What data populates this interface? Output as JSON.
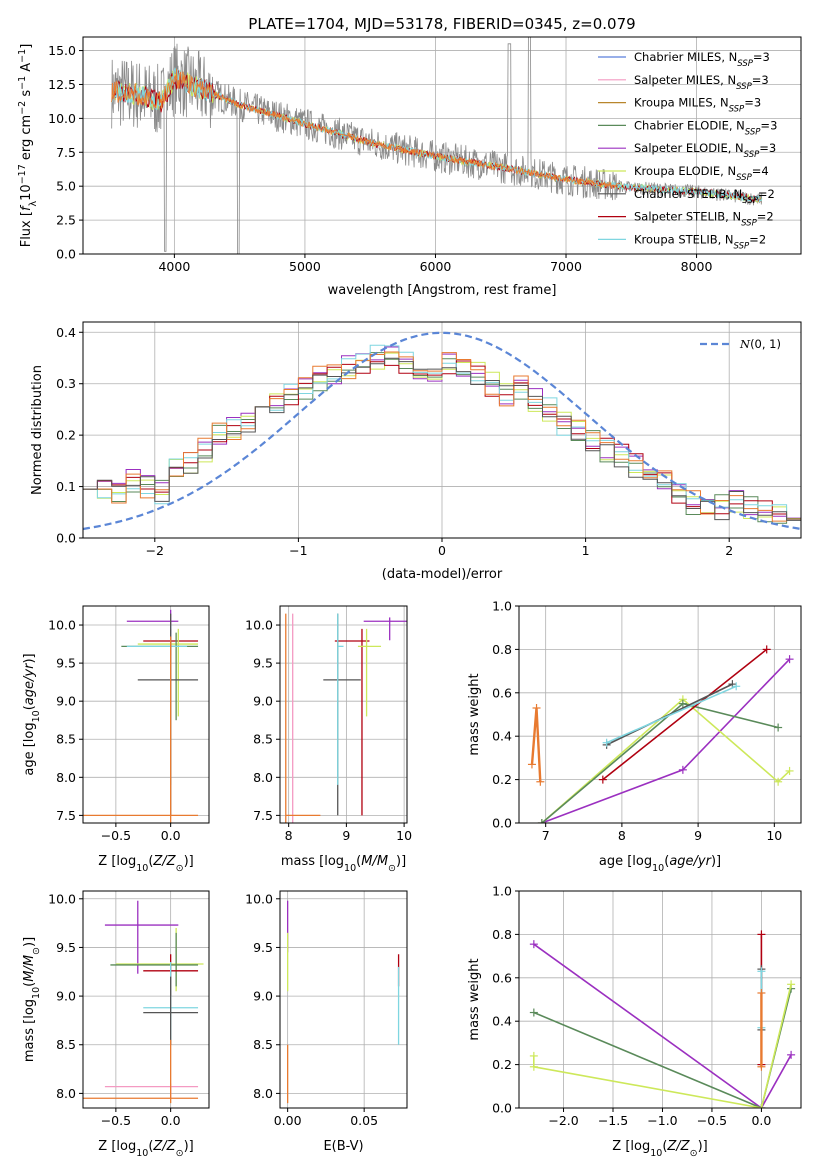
{
  "colors": {
    "Chabrier MILES": "#5b7fdc",
    "Salpeter MILES": "#f49ac2",
    "Kroupa MILES": "#b8862c",
    "Chabrier ELODIE": "#5a8a5a",
    "Salpeter ELODIE": "#9b30c0",
    "Kroupa ELODIE": "#cde85a",
    "Chabrier STELIB": "#555555",
    "Salpeter STELIB": "#b00010",
    "Kroupa STELIB": "#7fd6e0",
    "orange": "#e87a30"
  },
  "chart_data": [
    {
      "id": "spectrum",
      "type": "line",
      "title": "PLATE=1704, MJD=53178, FIBERID=0345, z=0.079",
      "xlabel": "wavelength [Angstrom, rest frame]",
      "ylabel": "Flux [f_λ10^-17 erg cm^-2 s^-1 A^-1]",
      "ylabel_parts": {
        "a": "Flux [",
        "b": "f",
        "c": "λ",
        "d": "10",
        "e": "−17",
        "f": " erg cm",
        "g": "−2",
        "h": " s",
        "i": "−1",
        "j": " A",
        "k": "−1",
        "l": "]"
      },
      "xlim": [
        3300,
        8800
      ],
      "ylim": [
        0,
        16
      ],
      "xticks": [
        4000,
        5000,
        6000,
        7000,
        8000
      ],
      "yticks": [
        0.0,
        2.5,
        5.0,
        7.5,
        10.0,
        12.5,
        15.0
      ],
      "ytick_labels": [
        "0.0",
        "2.5",
        "5.0",
        "7.5",
        "10.0",
        "12.5",
        "15.0"
      ],
      "legend_position": "upper-right",
      "legend": [
        {
          "name": "Chabrier MILES",
          "n": "3"
        },
        {
          "name": "Salpeter MILES",
          "n": "3"
        },
        {
          "name": "Kroupa MILES",
          "n": "3"
        },
        {
          "name": "Chabrier ELODIE",
          "n": "3"
        },
        {
          "name": "Salpeter ELODIE",
          "n": "3"
        },
        {
          "name": "Kroupa ELODIE",
          "n": "4"
        },
        {
          "name": "Chabrier STELIB",
          "n": "2"
        },
        {
          "name": "Salpeter STELIB",
          "n": "2"
        },
        {
          "name": "Kroupa STELIB",
          "n": "2"
        }
      ],
      "legend_suffix": {
        "a": ", N",
        "b": "SSP",
        "c": "="
      },
      "data_extent": [
        3520,
        8500
      ],
      "model_points": [
        [
          3520,
          12.0
        ],
        [
          3700,
          11.8
        ],
        [
          3900,
          11.2
        ],
        [
          4000,
          13.0
        ],
        [
          4200,
          12.2
        ],
        [
          4500,
          11.0
        ],
        [
          5000,
          9.6
        ],
        [
          5500,
          8.2
        ],
        [
          6000,
          7.2
        ],
        [
          6500,
          6.4
        ],
        [
          7000,
          5.5
        ],
        [
          7400,
          5.0
        ],
        [
          7500,
          4.9
        ],
        [
          8000,
          4.6
        ],
        [
          8500,
          4.0
        ]
      ]
    },
    {
      "id": "residuals",
      "type": "step",
      "xlabel": "(data-model)/error",
      "ylabel": "Normed distribution",
      "xlim": [
        -2.5,
        2.5
      ],
      "ylim": [
        0,
        0.42
      ],
      "xticks": [
        -2,
        -1,
        0,
        1,
        2
      ],
      "xtick_labels": [
        "−2",
        "−1",
        "0",
        "1",
        "2"
      ],
      "yticks": [
        0.0,
        0.1,
        0.2,
        0.3,
        0.4
      ],
      "ytick_labels": [
        "0.0",
        "0.1",
        "0.2",
        "0.3",
        "0.4"
      ],
      "legend_position": "upper-right",
      "gaussian_label": "N(0,1)",
      "gaussian_label_parts": {
        "a": "N",
        "b": "(0, 1)"
      },
      "bin_width": 0.1,
      "base_shape": [
        0.12,
        0.1,
        0.09,
        0.11,
        0.1,
        0.09,
        0.13,
        0.15,
        0.17,
        0.2,
        0.21,
        0.23,
        0.24,
        0.26,
        0.28,
        0.29,
        0.31,
        0.32,
        0.33,
        0.34,
        0.35,
        0.35,
        0.34,
        0.33,
        0.33,
        0.34,
        0.33,
        0.32,
        0.3,
        0.28,
        0.29,
        0.27,
        0.25,
        0.22,
        0.21,
        0.19,
        0.17,
        0.16,
        0.14,
        0.12,
        0.11,
        0.09,
        0.07,
        0.06,
        0.06,
        0.07,
        0.06,
        0.05,
        0.04,
        0.03
      ]
    },
    {
      "id": "age-z",
      "type": "errorbar",
      "xlabel_parts": {
        "a": "Z [log",
        "b": "10",
        "c": "(",
        "d": "Z/Z",
        "e": "⊙",
        "f": ")]"
      },
      "ylabel_parts": {
        "a": "age  [log",
        "b": "10",
        "c": "(",
        "d": "age/yr",
        "e": ")]"
      },
      "xlim": [
        -0.8,
        0.35
      ],
      "ylim": [
        7.4,
        10.25
      ],
      "xticks": [
        -0.5,
        0.0
      ],
      "xtick_labels": [
        "−0.5",
        "0.0"
      ],
      "yticks": [
        7.5,
        8.0,
        8.5,
        9.0,
        9.5,
        10.0
      ],
      "ytick_labels": [
        "7.5",
        "8.0",
        "8.5",
        "9.0",
        "9.5",
        "10.0"
      ],
      "points": [
        {
          "c": "Salpeter ELODIE",
          "x": 0.0,
          "y": 10.05,
          "xl": -0.4,
          "xh": 0.07,
          "yl": 9.8,
          "yh": 10.2
        },
        {
          "c": "Salpeter STELIB",
          "x": 0.0,
          "y": 9.79,
          "xl": -0.25,
          "xh": 0.25,
          "yl": 9.6,
          "yh": 9.95
        },
        {
          "c": "Kroupa ELODIE",
          "x": 0.07,
          "y": 9.75,
          "xl": -0.3,
          "xh": 0.25,
          "yl": 8.8,
          "yh": 9.95
        },
        {
          "c": "Chabrier ELODIE",
          "x": 0.05,
          "y": 9.72,
          "xl": -0.45,
          "xh": 0.25,
          "yl": 8.75,
          "yh": 9.9
        },
        {
          "c": "Kroupa STELIB",
          "x": 0.0,
          "y": 9.72,
          "xl": -0.4,
          "xh": 0.15,
          "yl": 7.9,
          "yh": 10.0
        },
        {
          "c": "Chabrier STELIB",
          "x": 0.0,
          "y": 9.28,
          "xl": -0.3,
          "xh": 0.25,
          "yl": 7.5,
          "yh": 10.15
        },
        {
          "c": "orange",
          "x": 0.0,
          "y": 7.5,
          "xl": -0.8,
          "xh": 0.25,
          "yl": 7.4,
          "yh": 9.85
        }
      ]
    },
    {
      "id": "age-mass",
      "type": "errorbar",
      "xlabel_parts": {
        "a": "mass [log",
        "b": "10",
        "c": "(",
        "d": "M/M",
        "e": "⊙",
        "f": ")]"
      },
      "xlim": [
        7.85,
        10.05
      ],
      "ylim": [
        7.4,
        10.25
      ],
      "xticks": [
        8,
        9,
        10
      ],
      "xtick_labels": [
        "8",
        "9",
        "10"
      ],
      "yticks": [
        7.5,
        8.0,
        8.5,
        9.0,
        9.5,
        10.0
      ],
      "ytick_labels": [
        "7.5",
        "8.0",
        "8.5",
        "9.0",
        "9.5",
        "10.0"
      ],
      "points": [
        {
          "c": "Salpeter ELODIE",
          "x": 9.75,
          "y": 10.05,
          "xl": 9.3,
          "xh": 10.05,
          "yl": 9.8,
          "yh": 10.1
        },
        {
          "c": "Salpeter STELIB",
          "x": 9.27,
          "y": 9.79,
          "xl": 8.8,
          "xh": 9.4,
          "yl": 7.5,
          "yh": 9.95
        },
        {
          "c": "Kroupa ELODIE",
          "x": 9.35,
          "y": 9.72,
          "xl": 9.2,
          "xh": 9.6,
          "yl": 8.8,
          "yh": 9.95
        },
        {
          "c": "Chabrier STELIB",
          "x": 8.85,
          "y": 9.28,
          "xl": 8.6,
          "xh": 9.25,
          "yl": 7.5,
          "yh": 10.15
        },
        {
          "c": "Kroupa STELIB",
          "x": 8.85,
          "y": 9.72,
          "xl": 8.85,
          "xh": 8.95,
          "yl": 7.9,
          "yh": 10.15
        },
        {
          "c": "Salpeter MILES",
          "x": 8.07,
          "y": 7.5,
          "xl": 8.07,
          "xh": 8.07,
          "yl": 7.4,
          "yh": 10.15
        },
        {
          "c": "orange",
          "x": 7.95,
          "y": 7.5,
          "xl": 7.95,
          "xh": 8.55,
          "yl": 7.4,
          "yh": 10.15
        }
      ]
    },
    {
      "id": "weight-age",
      "type": "line",
      "xlabel_parts": {
        "a": "age  [log",
        "b": "10",
        "c": "(",
        "d": "age/yr",
        "e": ")]"
      },
      "ylabel": "mass weight",
      "xlim": [
        6.65,
        10.35
      ],
      "ylim": [
        0,
        1
      ],
      "xticks": [
        7,
        8,
        9,
        10
      ],
      "xtick_labels": [
        "7",
        "8",
        "9",
        "10"
      ],
      "yticks": [
        0.0,
        0.2,
        0.4,
        0.6,
        0.8,
        1.0
      ],
      "ytick_labels": [
        "0.0",
        "0.2",
        "0.4",
        "0.6",
        "0.8",
        "1.0"
      ],
      "series": [
        {
          "c": "Salpeter ELODIE",
          "points": [
            [
              6.95,
              0.0
            ],
            [
              8.8,
              0.245
            ],
            [
              10.2,
              0.755
            ]
          ]
        },
        {
          "c": "Kroupa ELODIE",
          "points": [
            [
              6.95,
              0.0
            ],
            [
              8.8,
              0.57
            ],
            [
              10.05,
              0.19
            ],
            [
              10.2,
              0.24
            ]
          ]
        },
        {
          "c": "Chabrier ELODIE",
          "points": [
            [
              6.95,
              0.0
            ],
            [
              8.8,
              0.55
            ],
            [
              10.05,
              0.44
            ]
          ]
        },
        {
          "c": "Salpeter STELIB",
          "points": [
            [
              7.75,
              0.2
            ],
            [
              9.9,
              0.8
            ]
          ]
        },
        {
          "c": "Chabrier STELIB",
          "points": [
            [
              7.8,
              0.36
            ],
            [
              9.45,
              0.64
            ]
          ]
        },
        {
          "c": "Kroupa STELIB",
          "points": [
            [
              7.8,
              0.37
            ],
            [
              9.5,
              0.63
            ]
          ]
        },
        {
          "c": "orange",
          "points": [
            [
              6.82,
              0.27
            ],
            [
              6.88,
              0.53
            ],
            [
              6.93,
              0.19
            ]
          ]
        }
      ]
    },
    {
      "id": "mass-z",
      "type": "errorbar",
      "xlabel_parts": {
        "a": "Z [log",
        "b": "10",
        "c": "(",
        "d": "Z/Z",
        "e": "⊙",
        "f": ")]"
      },
      "ylabel_parts": {
        "a": "mass [log",
        "b": "10",
        "c": "(",
        "d": "M/M",
        "e": "⊙",
        "f": ")]"
      },
      "xlim": [
        -0.8,
        0.35
      ],
      "ylim": [
        7.85,
        10.08
      ],
      "xticks": [
        -0.5,
        0.0
      ],
      "xtick_labels": [
        "−0.5",
        "0.0"
      ],
      "yticks": [
        8.0,
        8.5,
        9.0,
        9.5,
        10.0
      ],
      "ytick_labels": [
        "8.0",
        "8.5",
        "9.0",
        "9.5",
        "10.0"
      ],
      "points": [
        {
          "c": "Salpeter ELODIE",
          "x": -0.3,
          "y": 9.73,
          "xl": -0.6,
          "xh": 0.07,
          "yl": 9.23,
          "yh": 9.98
        },
        {
          "c": "Kroupa ELODIE",
          "x": 0.05,
          "y": 9.33,
          "xl": -0.5,
          "xh": 0.3,
          "yl": 9.05,
          "yh": 9.7
        },
        {
          "c": "Chabrier ELODIE",
          "x": 0.05,
          "y": 9.32,
          "xl": -0.55,
          "xh": 0.25,
          "yl": 9.1,
          "yh": 9.65
        },
        {
          "c": "Salpeter STELIB",
          "x": 0.0,
          "y": 9.26,
          "xl": -0.25,
          "xh": 0.25,
          "yl": 9.0,
          "yh": 9.43
        },
        {
          "c": "Kroupa STELIB",
          "x": 0.0,
          "y": 8.88,
          "xl": -0.25,
          "xh": 0.25,
          "yl": 8.5,
          "yh": 9.35
        },
        {
          "c": "Chabrier STELIB",
          "x": 0.0,
          "y": 8.83,
          "xl": -0.25,
          "xh": 0.25,
          "yl": 8.5,
          "yh": 9.2
        },
        {
          "c": "Salpeter MILES",
          "x": 0.0,
          "y": 8.07,
          "xl": -0.6,
          "xh": 0.25,
          "yl": 7.95,
          "yh": 8.1
        },
        {
          "c": "orange",
          "x": 0.0,
          "y": 7.95,
          "xl": -0.8,
          "xh": 0.25,
          "yl": 7.9,
          "yh": 8.55
        }
      ]
    },
    {
      "id": "mass-ebv",
      "type": "errorbar",
      "xlabel": "E(B-V)",
      "xlim": [
        -0.005,
        0.078
      ],
      "ylim": [
        7.85,
        10.08
      ],
      "xticks": [
        0.0,
        0.05
      ],
      "xtick_labels": [
        "0.00",
        "0.05"
      ],
      "yticks": [
        8.0,
        8.5,
        9.0,
        9.5,
        10.0
      ],
      "ytick_labels": [
        "8.0",
        "8.5",
        "9.0",
        "9.5",
        "10.0"
      ],
      "points": [
        {
          "c": "Salpeter ELODIE",
          "x": 0.0,
          "y": 9.73,
          "xl": 0.0,
          "xh": 0.0,
          "yl": 9.45,
          "yh": 9.98
        },
        {
          "c": "Kroupa ELODIE",
          "x": 0.0,
          "y": 9.33,
          "xl": 0.0,
          "xh": 0.0,
          "yl": 9.05,
          "yh": 9.65
        },
        {
          "c": "orange",
          "x": 0.0,
          "y": 8.1,
          "xl": 0.0,
          "xh": 0.0,
          "yl": 7.9,
          "yh": 8.5
        },
        {
          "c": "Salpeter STELIB",
          "x": 0.0725,
          "y": 9.26,
          "xl": 0.0725,
          "xh": 0.0725,
          "yl": 9.1,
          "yh": 9.43
        },
        {
          "c": "Kroupa STELIB",
          "x": 0.0725,
          "y": 8.88,
          "xl": 0.0725,
          "xh": 0.0725,
          "yl": 8.5,
          "yh": 9.3
        }
      ]
    },
    {
      "id": "weight-z",
      "type": "line",
      "xlabel_parts": {
        "a": "Z [log",
        "b": "10",
        "c": "(",
        "d": "Z/Z",
        "e": "⊙",
        "f": ")]"
      },
      "ylabel": "mass weight",
      "xlim": [
        -2.45,
        0.4
      ],
      "ylim": [
        0,
        1
      ],
      "xticks": [
        -2.0,
        -1.5,
        -1.0,
        -0.5,
        0.0
      ],
      "xtick_labels": [
        "−2.0",
        "−1.5",
        "−1.0",
        "−0.5",
        "0.0"
      ],
      "yticks": [
        0.0,
        0.2,
        0.4,
        0.6,
        0.8,
        1.0
      ],
      "ytick_labels": [
        "0.0",
        "0.2",
        "0.4",
        "0.6",
        "0.8",
        "1.0"
      ],
      "series": [
        {
          "c": "Salpeter ELODIE",
          "points": [
            [
              -2.3,
              0.755
            ],
            [
              0.0,
              0.0
            ],
            [
              0.3,
              0.245
            ]
          ]
        },
        {
          "c": "Chabrier ELODIE",
          "points": [
            [
              -2.3,
              0.44
            ],
            [
              0.0,
              0.0
            ],
            [
              0.3,
              0.55
            ]
          ]
        },
        {
          "c": "Kroupa ELODIE",
          "points": [
            [
              -2.3,
              0.24
            ],
            [
              -2.3,
              0.19
            ],
            [
              0.0,
              0.0
            ],
            [
              0.3,
              0.57
            ]
          ]
        },
        {
          "c": "Salpeter STELIB",
          "points": [
            [
              0.0,
              0.2
            ],
            [
              0.0,
              0.8
            ]
          ]
        },
        {
          "c": "Chabrier STELIB",
          "points": [
            [
              0.0,
              0.36
            ],
            [
              0.0,
              0.64
            ]
          ]
        },
        {
          "c": "Kroupa STELIB",
          "points": [
            [
              0.0,
              0.37
            ],
            [
              0.0,
              0.63
            ]
          ]
        },
        {
          "c": "orange",
          "points": [
            [
              0.0,
              0.19
            ],
            [
              0.0,
              0.53
            ]
          ]
        }
      ]
    }
  ]
}
